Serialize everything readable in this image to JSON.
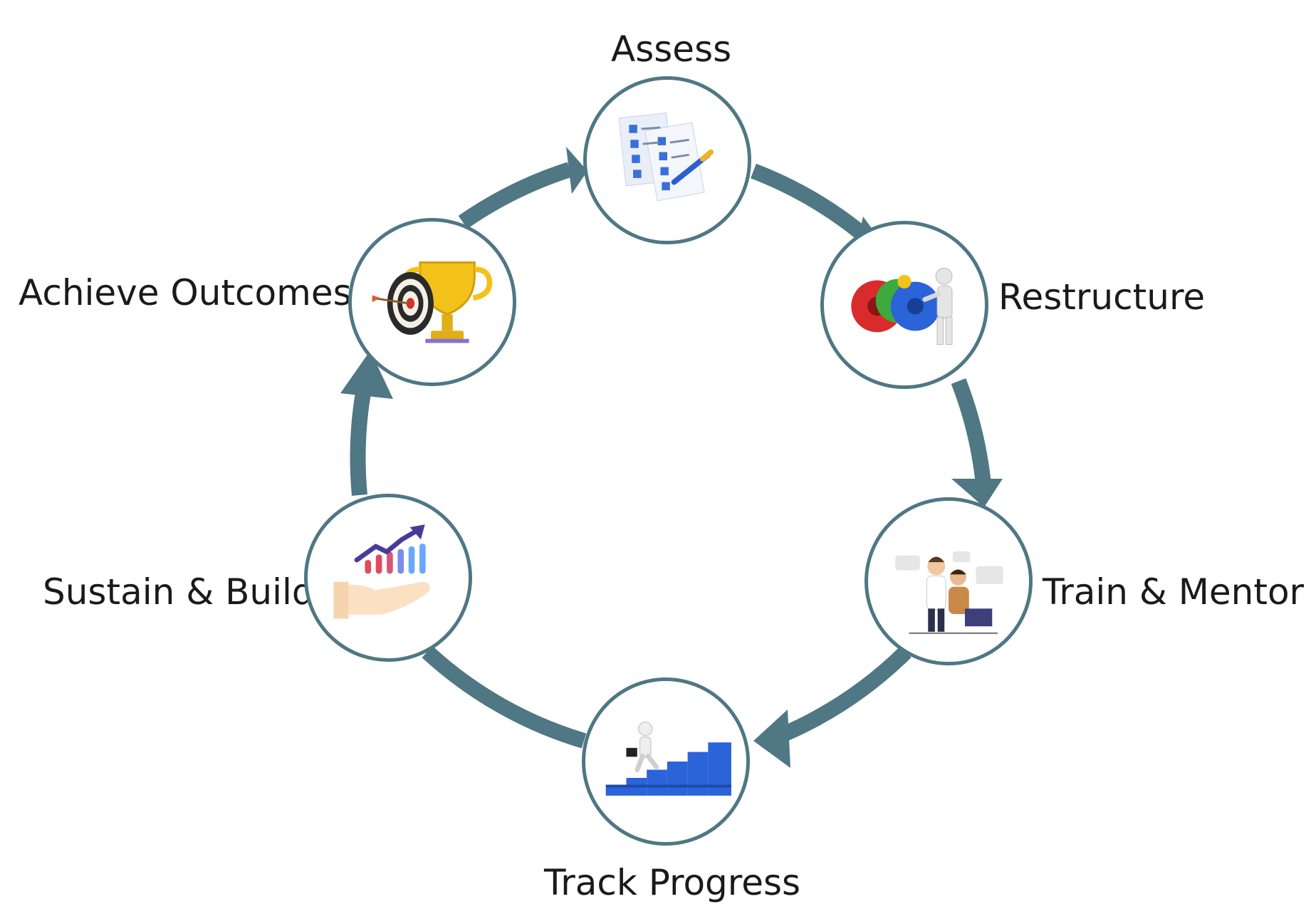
{
  "diagram": {
    "type": "cycle",
    "steps": [
      {
        "id": "assess",
        "label": "Assess",
        "icon": "checklist-pen-icon"
      },
      {
        "id": "restructure",
        "label": "Restructure",
        "icon": "gears-person-icon"
      },
      {
        "id": "train",
        "label": "Train & Mentor",
        "icon": "mentoring-people-icon"
      },
      {
        "id": "track",
        "label": "Track Progress",
        "icon": "stairs-businessman-icon"
      },
      {
        "id": "sustain",
        "label": "Sustain & Build",
        "icon": "hand-growth-chart-icon"
      },
      {
        "id": "achieve",
        "label": "Achieve Outcomes",
        "icon": "trophy-target-icon"
      }
    ],
    "colors": {
      "ring": "#4f7784",
      "text": "#1a1a1a"
    }
  }
}
